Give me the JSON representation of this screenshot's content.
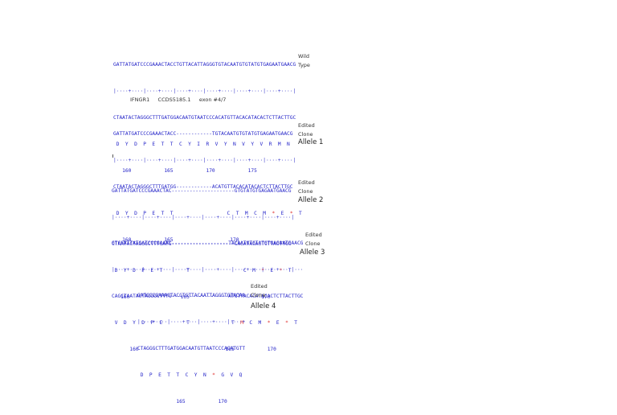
{
  "wild": {
    "top": "GATTATGATCCCGAAACTACCTGTTACATTAGGGTGTACAATGTGTATGTGAGAATGAACG",
    "ruler": "|····+····|····+····|····+····|····+····|····+····|····+····|",
    "bottom": "CTAATACTAGGGCTTTGATGGACAATGTAATCCCACATGTTACACATACACTCTTACTTGC",
    "aa": " D  Y  D  P  E  T  T  C  Y  I  R  V  Y  N  V  Y  V  R  M  N",
    "nums": "   160           165           170           175",
    "label1": "Wild",
    "label2": "Type"
  },
  "gene_info": "IFNGR1     CCDS5185.1     exon #4/7",
  "allele1": {
    "top": "GATTATGATCCCGAAACTACC------------TGTACAATGTGTATGTGAGAATGAACG",
    "ruler": "|····+····|····+····|····+····|····+····|····+····|····+····|",
    "bottom": "CTAATACTAGGGCTTTGATGG------------ACATGTTACACATACACTCTTACTTGC",
    "aa_a": " D  Y  D  P  E  T  T                  C  T  M  C  M  ",
    "aa_stop1": "*",
    "aa_b": "  E  ",
    "aa_stop2": "*",
    "aa_c": "  T",
    "nums": "   160           165                   170",
    "label1": "Edited",
    "label2": "Clone",
    "title": "Allele 1"
  },
  "allele2": {
    "top": "GATTATGATCCCGAAACTAC---------------------GTGTATGTGAGAATGAACG",
    "ruler": "|····+····|····+····|····+····|····+····|····+····|····+····|",
    "bottom": "CTAATACTAGGGCTTTGATG---------------------CACATACACTCTTACTTGC",
    "aa_a": " D  Y  D  P  E  T        T                  C  M  ",
    "aa_stop1": "*",
    "aa_b": "  E  ",
    "aa_stop2": "*",
    "aa_c": "  T",
    "nums": "   160                 165                        170",
    "label1": "Edited",
    "label2": "Clone",
    "title": "Allele 2"
  },
  "allele3": {
    "top": "GTCGATTATGATCCCGAAAC-------------------TACAATGTGTATGTGAGAATGAACG",
    "ruler": "|····+····|····+····|····+····|····+····|····+····|····+····|···",
    "bottom": "CAGCTAATACTAGGGCTTTG-------------------ATGTTACACATACACTCTTACTTGC",
    "aa_a": " V  D  Y  D  P  E        T              T  ",
    "aa_mut": "M",
    "aa_b": "  C  M  ",
    "aa_stop1": "*",
    "aa_c": "  E  ",
    "aa_stop2": "*",
    "aa_d": "  T",
    "nums": "      160                             165           170",
    "label1": "Edited",
    "label2": "Clone",
    "title": "Allele 3"
  },
  "allele4": {
    "top": "GATCCCGAAACTACCTGTTACAATTAGGGTGTACAA",
    "ruler": "|····+····|····+····|····+····|····+",
    "bottom": "CTAGGGCTTTGATGGACAATGTTAATCCCACATGTT",
    "aa_a": " D  P  E  T  T  C  Y  N  ",
    "aa_stop1": "*",
    "aa_b": "  G  V  Q",
    "nums": "             165           170",
    "label1": "Edited",
    "label2": "Clone",
    "title": "Allele 4"
  }
}
